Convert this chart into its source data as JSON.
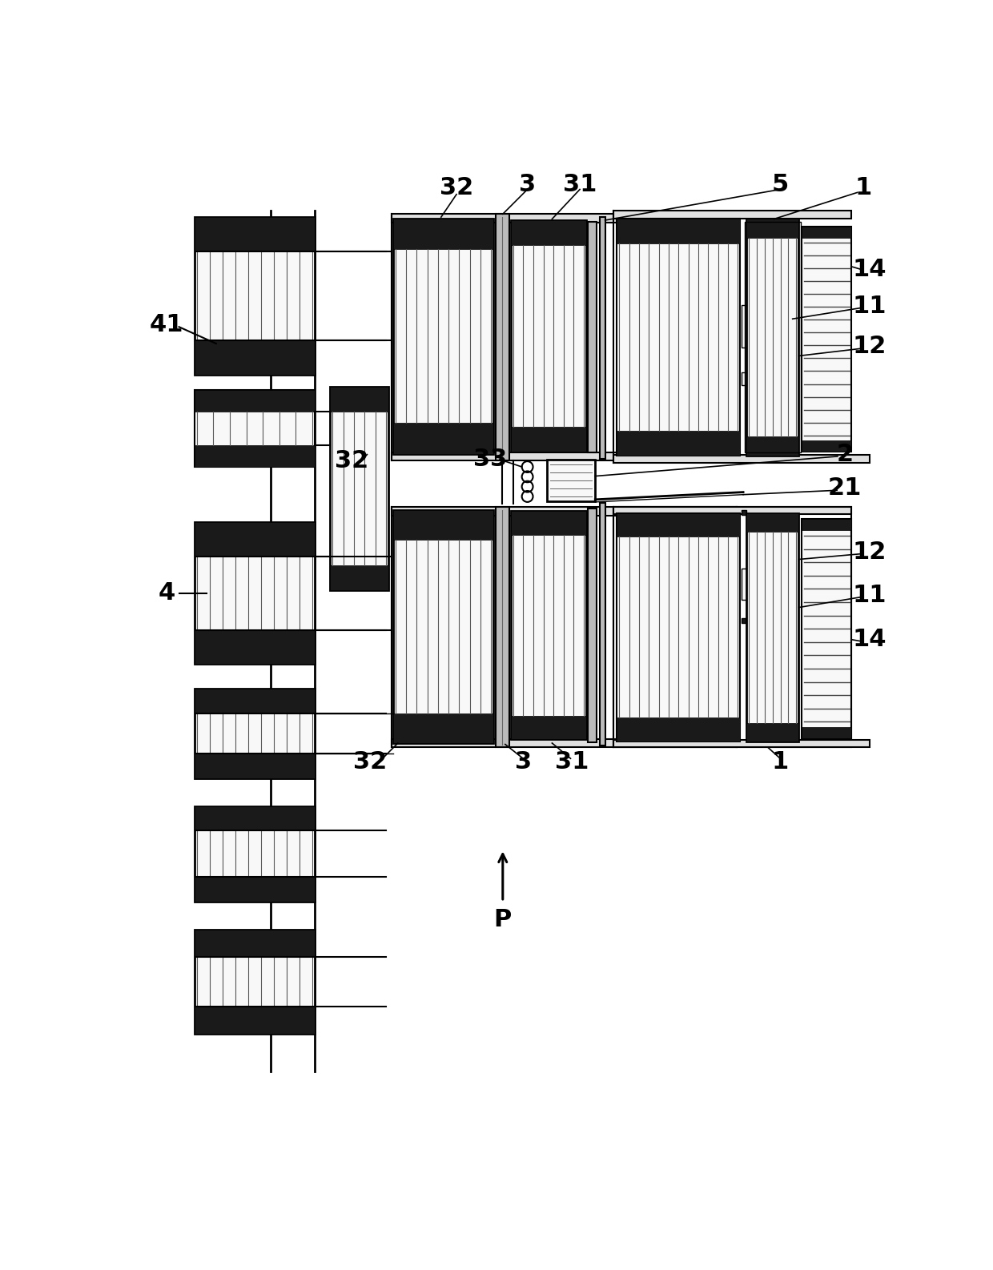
{
  "bg_color": "#ffffff",
  "black": "#000000",
  "dark": "#111111",
  "fdark": "#1a1a1a",
  "flight": "#e0e0e0",
  "fwhite": "#f8f8f8",
  "mgray": "#666666",
  "lgray": "#bbbbbb",
  "dgray": "#444444"
}
